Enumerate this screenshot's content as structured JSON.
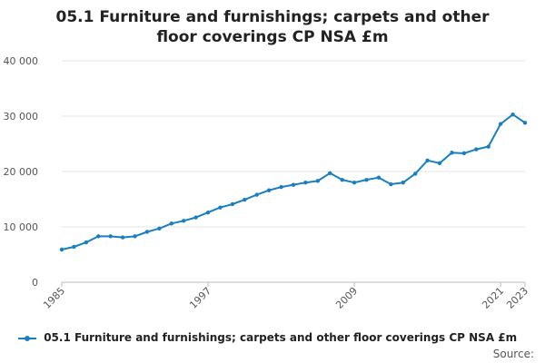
{
  "chart_data": {
    "type": "line",
    "title": "05.1 Furniture and furnishings; carpets and other floor coverings CP NSA £m",
    "xlabel": "",
    "ylabel": "",
    "ylim": [
      0,
      40000
    ],
    "yticks": [
      0,
      10000,
      20000,
      30000,
      40000
    ],
    "ytick_labels": [
      "0",
      "10 000",
      "20 000",
      "30 000",
      "40 000"
    ],
    "xlim": [
      1985,
      2023
    ],
    "xticks": [
      1985,
      1997,
      2009,
      2021,
      2023
    ],
    "xtick_labels": [
      "1985",
      "1997",
      "2009",
      "2021",
      "2023"
    ],
    "grid": true,
    "legend_position": "bottom",
    "series": [
      {
        "name": "05.1 Furniture and furnishings; carpets and other floor coverings CP NSA £m",
        "color": "#1a7fc1",
        "x": [
          1985,
          1986,
          1987,
          1988,
          1989,
          1990,
          1991,
          1992,
          1993,
          1994,
          1995,
          1996,
          1997,
          1998,
          1999,
          2000,
          2001,
          2002,
          2003,
          2004,
          2005,
          2006,
          2007,
          2008,
          2009,
          2010,
          2011,
          2012,
          2013,
          2014,
          2015,
          2016,
          2017,
          2018,
          2019,
          2020,
          2021,
          2022,
          2023
        ],
        "values": [
          5900,
          6400,
          7200,
          8300,
          8300,
          8100,
          8300,
          9100,
          9700,
          10600,
          11100,
          11700,
          12600,
          13500,
          14100,
          14900,
          15800,
          16600,
          17200,
          17600,
          18000,
          18300,
          19700,
          18500,
          18000,
          18500,
          18900,
          17700,
          18000,
          19600,
          22000,
          21500,
          23400,
          23300,
          24000,
          24500,
          28600,
          30300,
          28800
        ]
      }
    ]
  },
  "legend": {
    "label": "05.1 Furniture and furnishings; carpets and other floor coverings CP NSA £m"
  },
  "source_label": "Source:"
}
